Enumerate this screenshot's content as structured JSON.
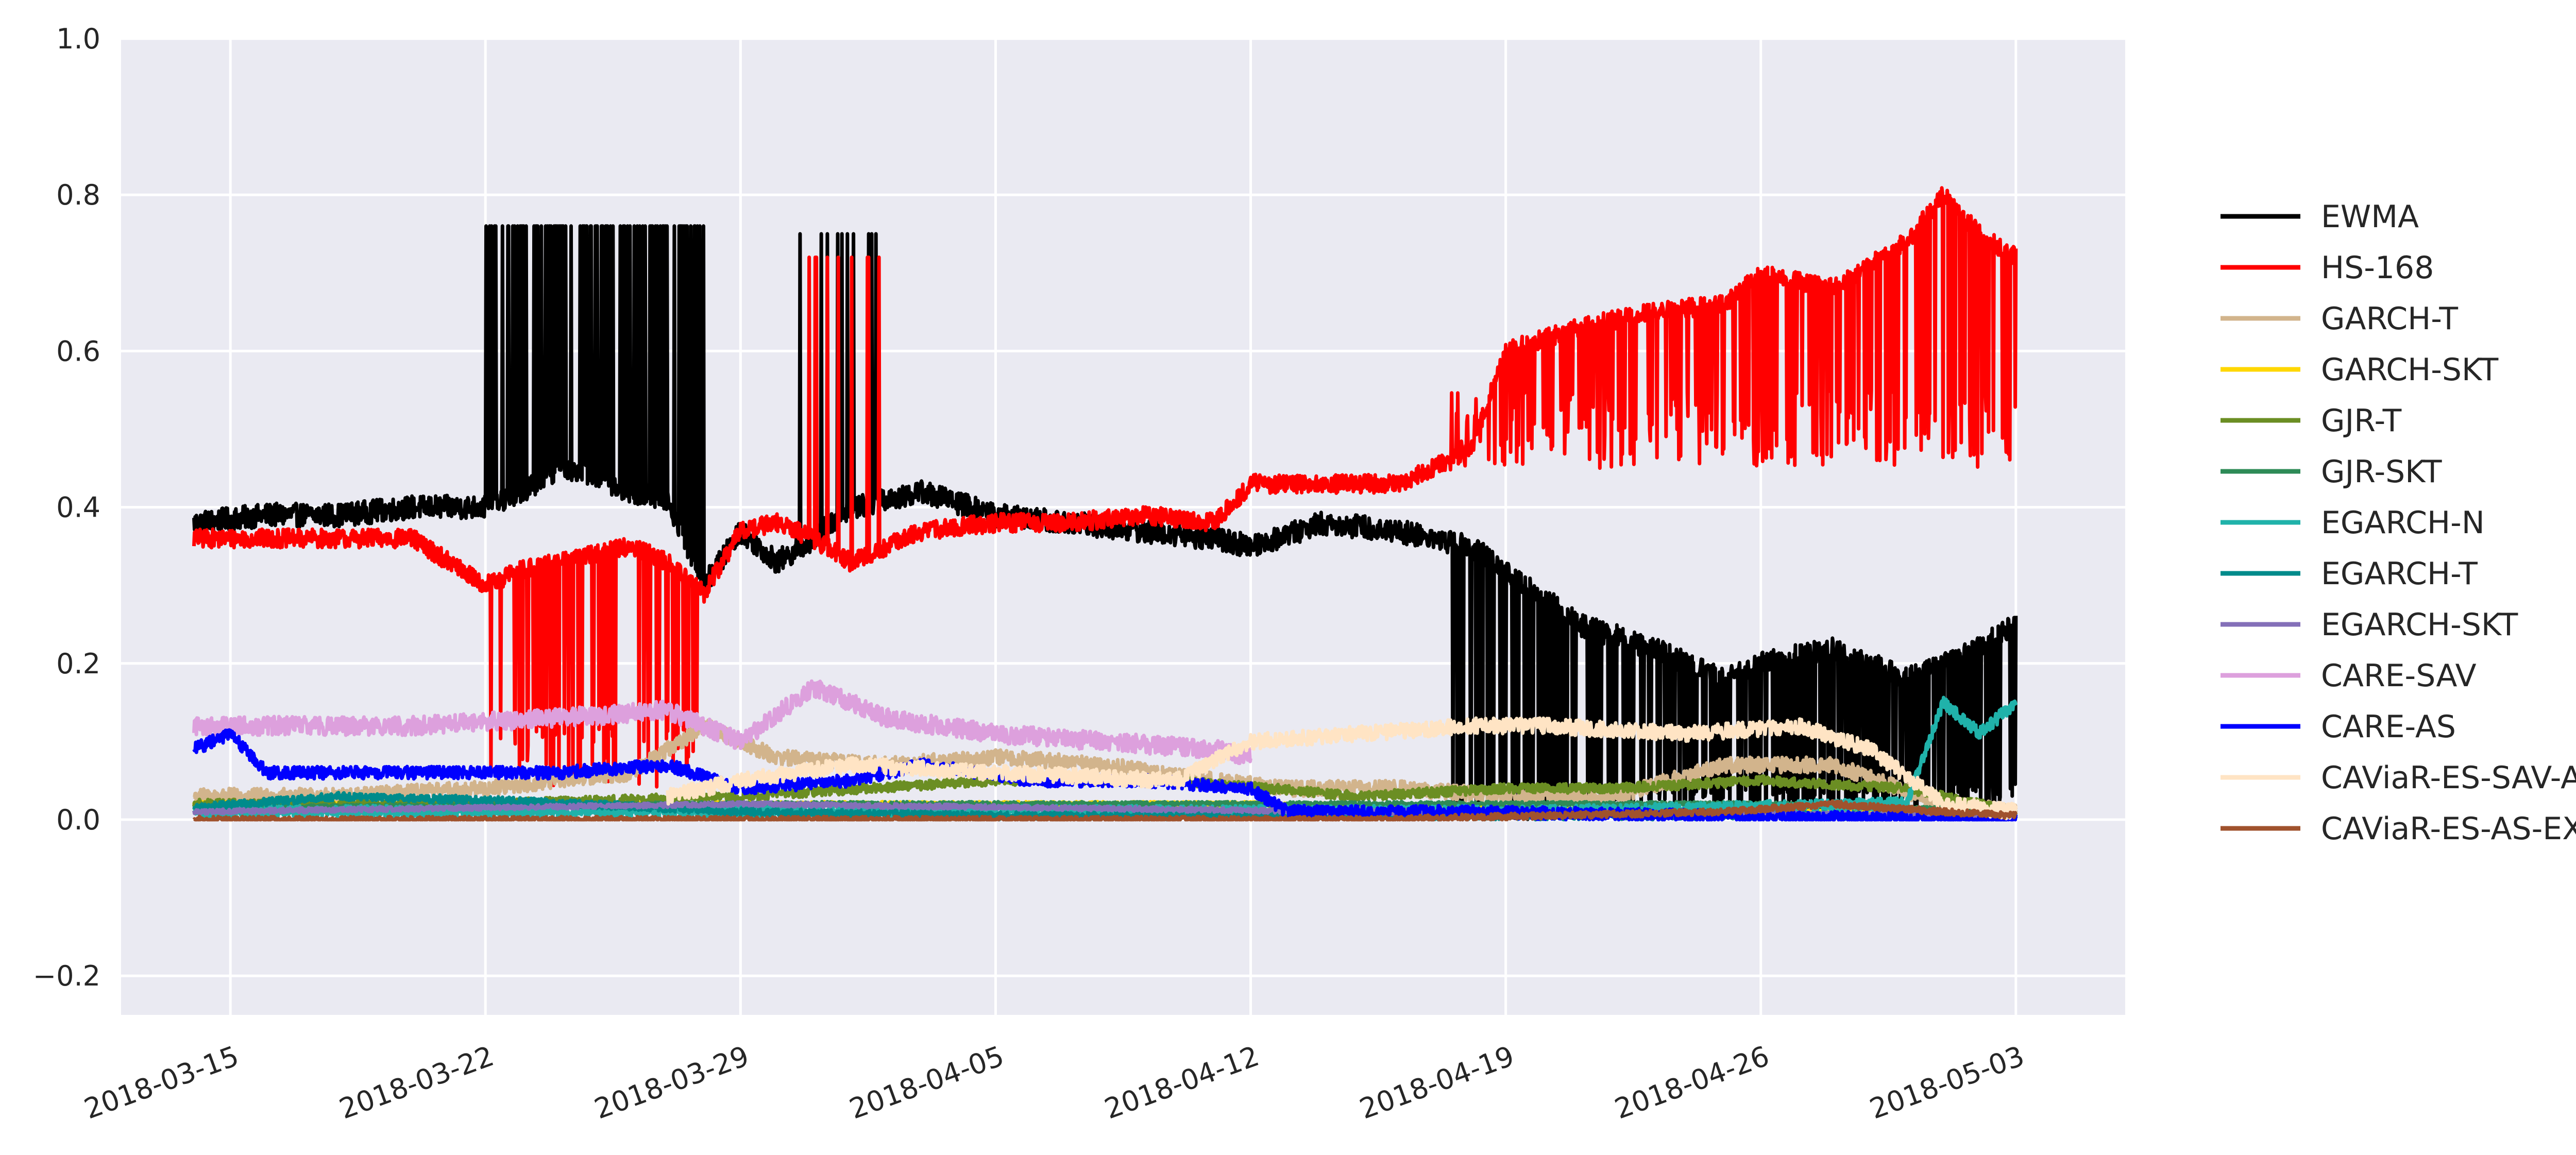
{
  "chart_data": {
    "type": "line",
    "title": "",
    "xlabel": "",
    "ylabel": "",
    "x_start": "2018-03-14",
    "x_end": "2018-05-03",
    "xlim": [
      "2018-03-12",
      "2018-05-06"
    ],
    "ylim": [
      -0.25,
      1.0
    ],
    "yticks": [
      -0.2,
      0.0,
      0.2,
      0.4,
      0.6,
      0.8,
      1.0
    ],
    "ytick_labels": [
      "−0.2",
      "0.0",
      "0.2",
      "0.4",
      "0.6",
      "0.8",
      "1.0"
    ],
    "xticks": [
      "2018-03-15",
      "2018-03-22",
      "2018-03-29",
      "2018-04-05",
      "2018-04-12",
      "2018-04-19",
      "2018-04-26",
      "2018-05-03"
    ],
    "grid": true,
    "background": "#eaeaf2",
    "legend_position": "right",
    "series": [
      {
        "name": "EWMA",
        "color": "#000000",
        "x": [
          "2018-03-14",
          "2018-03-16",
          "2018-03-18",
          "2018-03-20",
          "2018-03-22",
          "2018-03-23",
          "2018-03-24",
          "2018-03-25",
          "2018-03-26",
          "2018-03-27",
          "2018-03-28",
          "2018-03-29",
          "2018-03-30",
          "2018-03-31",
          "2018-04-01",
          "2018-04-02",
          "2018-04-03",
          "2018-04-05",
          "2018-04-07",
          "2018-04-09",
          "2018-04-11",
          "2018-04-12",
          "2018-04-14",
          "2018-04-16",
          "2018-04-18",
          "2018-04-19",
          "2018-04-21",
          "2018-04-23",
          "2018-04-25",
          "2018-04-26",
          "2018-04-28",
          "2018-04-30",
          "2018-05-01",
          "2018-05-02",
          "2018-05-03"
        ],
        "y": [
          0.38,
          0.39,
          0.39,
          0.4,
          0.4,
          0.42,
          0.45,
          0.44,
          0.42,
          0.41,
          0.3,
          0.37,
          0.33,
          0.36,
          0.4,
          0.41,
          0.42,
          0.39,
          0.38,
          0.37,
          0.36,
          0.35,
          0.38,
          0.37,
          0.35,
          0.32,
          0.25,
          0.22,
          0.18,
          0.2,
          0.22,
          0.18,
          0.2,
          0.22,
          0.25
        ]
      },
      {
        "name": "HS-168",
        "color": "#ff0000",
        "x": [
          "2018-03-14",
          "2018-03-16",
          "2018-03-18",
          "2018-03-20",
          "2018-03-22",
          "2018-03-23",
          "2018-03-24",
          "2018-03-25",
          "2018-03-26",
          "2018-03-27",
          "2018-03-28",
          "2018-03-29",
          "2018-03-30",
          "2018-03-31",
          "2018-04-01",
          "2018-04-02",
          "2018-04-03",
          "2018-04-05",
          "2018-04-07",
          "2018-04-09",
          "2018-04-11",
          "2018-04-12",
          "2018-04-14",
          "2018-04-16",
          "2018-04-18",
          "2018-04-19",
          "2018-04-21",
          "2018-04-23",
          "2018-04-25",
          "2018-04-26",
          "2018-04-28",
          "2018-04-30",
          "2018-05-01",
          "2018-05-02",
          "2018-05-03"
        ],
        "y": [
          0.36,
          0.36,
          0.36,
          0.36,
          0.3,
          0.32,
          0.33,
          0.34,
          0.35,
          0.33,
          0.29,
          0.37,
          0.38,
          0.36,
          0.33,
          0.35,
          0.37,
          0.38,
          0.38,
          0.39,
          0.38,
          0.43,
          0.43,
          0.43,
          0.47,
          0.6,
          0.63,
          0.65,
          0.66,
          0.7,
          0.68,
          0.74,
          0.8,
          0.75,
          0.72
        ]
      },
      {
        "name": "GARCH-T",
        "color": "#d2b48c",
        "x": [
          "2018-03-14",
          "2018-03-18",
          "2018-03-22",
          "2018-03-26",
          "2018-03-28",
          "2018-03-30",
          "2018-04-02",
          "2018-04-05",
          "2018-04-08",
          "2018-04-11",
          "2018-04-13",
          "2018-04-16",
          "2018-04-19",
          "2018-04-22",
          "2018-04-25",
          "2018-04-28",
          "2018-05-01",
          "2018-05-03"
        ],
        "y": [
          0.03,
          0.03,
          0.04,
          0.06,
          0.12,
          0.08,
          0.07,
          0.08,
          0.07,
          0.05,
          0.04,
          0.04,
          0.03,
          0.03,
          0.07,
          0.07,
          0.02,
          0.01
        ]
      },
      {
        "name": "GARCH-SKT",
        "color": "#ffd700",
        "x": [
          "2018-03-14",
          "2018-04-01",
          "2018-04-12",
          "2018-04-24",
          "2018-05-03"
        ],
        "y": [
          0.02,
          0.02,
          0.02,
          0.01,
          0.01
        ]
      },
      {
        "name": "GJR-T",
        "color": "#6b8e23",
        "x": [
          "2018-03-14",
          "2018-03-22",
          "2018-03-29",
          "2018-04-05",
          "2018-04-10",
          "2018-04-15",
          "2018-04-19",
          "2018-04-22",
          "2018-04-26",
          "2018-04-30",
          "2018-05-03"
        ],
        "y": [
          0.02,
          0.02,
          0.03,
          0.05,
          0.05,
          0.03,
          0.04,
          0.04,
          0.05,
          0.04,
          0.01
        ]
      },
      {
        "name": "GJR-SKT",
        "color": "#2e8b57",
        "x": [
          "2018-03-14",
          "2018-03-29",
          "2018-04-12",
          "2018-04-26",
          "2018-05-03"
        ],
        "y": [
          0.015,
          0.02,
          0.02,
          0.02,
          0.01
        ]
      },
      {
        "name": "EGARCH-N",
        "color": "#20b2aa",
        "x": [
          "2018-03-14",
          "2018-04-20",
          "2018-04-30",
          "2018-05-01",
          "2018-05-02",
          "2018-05-03"
        ],
        "y": [
          0.01,
          0.01,
          0.02,
          0.15,
          0.11,
          0.15
        ]
      },
      {
        "name": "EGARCH-T",
        "color": "#008b8b",
        "x": [
          "2018-03-14",
          "2018-03-18",
          "2018-03-22",
          "2018-03-27",
          "2018-03-29",
          "2018-04-05",
          "2018-04-15",
          "2018-04-26",
          "2018-05-03"
        ],
        "y": [
          0.015,
          0.03,
          0.025,
          0.015,
          0.01,
          0.005,
          0.005,
          0.005,
          0.005
        ]
      },
      {
        "name": "EGARCH-SKT",
        "color": "#8470b8",
        "x": [
          "2018-03-14",
          "2018-03-29",
          "2018-04-15",
          "2018-05-03"
        ],
        "y": [
          0.01,
          0.02,
          0.01,
          0.005
        ]
      },
      {
        "name": "CARE-SAV",
        "color": "#dda0dd",
        "x": [
          "2018-03-14",
          "2018-03-16",
          "2018-03-20",
          "2018-03-24",
          "2018-03-27",
          "2018-03-29",
          "2018-03-31",
          "2018-04-02",
          "2018-04-05",
          "2018-04-08",
          "2018-04-11",
          "2018-04-12"
        ],
        "y": [
          0.12,
          0.12,
          0.12,
          0.13,
          0.14,
          0.1,
          0.17,
          0.13,
          0.11,
          0.1,
          0.09,
          0.08
        ]
      },
      {
        "name": "CARE-AS",
        "color": "#0000ff",
        "x": [
          "2018-03-14",
          "2018-03-15",
          "2018-03-16",
          "2018-03-20",
          "2018-03-24",
          "2018-03-27",
          "2018-03-29",
          "2018-04-01",
          "2018-04-03",
          "2018-04-06",
          "2018-04-09",
          "2018-04-12",
          "2018-04-13",
          "2018-04-18",
          "2018-04-24",
          "2018-05-03"
        ],
        "y": [
          0.09,
          0.11,
          0.06,
          0.06,
          0.06,
          0.07,
          0.04,
          0.05,
          0.07,
          0.05,
          0.05,
          0.04,
          0.01,
          0.01,
          0.005,
          0.0
        ]
      },
      {
        "name": "CAViaR-ES-SAV-AR",
        "color": "#ffe4c4",
        "x": [
          "2018-03-27",
          "2018-03-29",
          "2018-04-01",
          "2018-04-05",
          "2018-04-10",
          "2018-04-12",
          "2018-04-15",
          "2018-04-18",
          "2018-04-20",
          "2018-04-24",
          "2018-04-27",
          "2018-04-29",
          "2018-05-01",
          "2018-05-03"
        ],
        "y": [
          0.03,
          0.05,
          0.07,
          0.06,
          0.05,
          0.1,
          0.11,
          0.12,
          0.12,
          0.11,
          0.12,
          0.09,
          0.02,
          0.01
        ]
      },
      {
        "name": "CAViaR-ES-AS-EXP",
        "color": "#a0522d",
        "x": [
          "2018-03-14",
          "2018-04-15",
          "2018-04-20",
          "2018-04-25",
          "2018-04-28",
          "2018-05-01",
          "2018-05-03"
        ],
        "y": [
          0.0,
          0.0,
          0.005,
          0.01,
          0.02,
          0.01,
          0.005
        ]
      }
    ]
  }
}
